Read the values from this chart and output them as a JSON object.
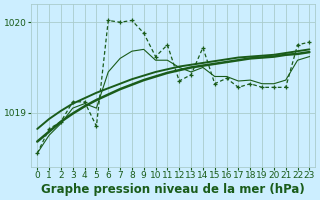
{
  "title": "Graphe pression niveau de la mer (hPa)",
  "x_labels": [
    "0",
    "1",
    "2",
    "3",
    "4",
    "5",
    "6",
    "7",
    "8",
    "9",
    "10",
    "11",
    "12",
    "13",
    "14",
    "15",
    "16",
    "17",
    "18",
    "19",
    "20",
    "21",
    "22",
    "23"
  ],
  "hours": [
    0,
    1,
    2,
    3,
    4,
    5,
    6,
    7,
    8,
    9,
    10,
    11,
    12,
    13,
    14,
    15,
    16,
    17,
    18,
    19,
    20,
    21,
    22,
    23
  ],
  "main_line": [
    1018.55,
    1018.82,
    1018.9,
    1019.12,
    1019.12,
    1018.85,
    1020.02,
    1020.0,
    1020.02,
    1019.88,
    1019.62,
    1019.75,
    1019.35,
    1019.42,
    1019.72,
    1019.32,
    1019.38,
    1019.28,
    1019.32,
    1019.28,
    1019.28,
    1019.28,
    1019.75,
    1019.78
  ],
  "smooth_line": [
    1018.55,
    1018.75,
    1018.88,
    1019.05,
    1019.1,
    1019.05,
    1019.45,
    1019.6,
    1019.68,
    1019.7,
    1019.58,
    1019.58,
    1019.5,
    1019.45,
    1019.5,
    1019.4,
    1019.4,
    1019.35,
    1019.36,
    1019.32,
    1019.32,
    1019.36,
    1019.58,
    1019.62
  ],
  "trend_upper": [
    1018.82,
    1018.93,
    1019.02,
    1019.1,
    1019.16,
    1019.22,
    1019.27,
    1019.32,
    1019.37,
    1019.41,
    1019.45,
    1019.48,
    1019.51,
    1019.53,
    1019.55,
    1019.57,
    1019.59,
    1019.61,
    1019.62,
    1019.63,
    1019.64,
    1019.66,
    1019.68,
    1019.7
  ],
  "trend_lower": [
    1018.68,
    1018.79,
    1018.9,
    1018.99,
    1019.07,
    1019.14,
    1019.2,
    1019.26,
    1019.31,
    1019.36,
    1019.4,
    1019.44,
    1019.47,
    1019.5,
    1019.52,
    1019.54,
    1019.56,
    1019.58,
    1019.6,
    1019.61,
    1019.62,
    1019.64,
    1019.65,
    1019.67
  ],
  "bg_color": "#cceeff",
  "vgrid_color": "#aacccc",
  "hgrid_color": "#aacccc",
  "line_color": "#1a5c1a",
  "title_color": "#1a5c1a",
  "ylim_min": 1018.4,
  "ylim_max": 1020.2,
  "yticks": [
    1019,
    1020
  ],
  "title_fontsize": 8.0,
  "tick_fontsize": 6.5,
  "label_fontsize": 8.5
}
